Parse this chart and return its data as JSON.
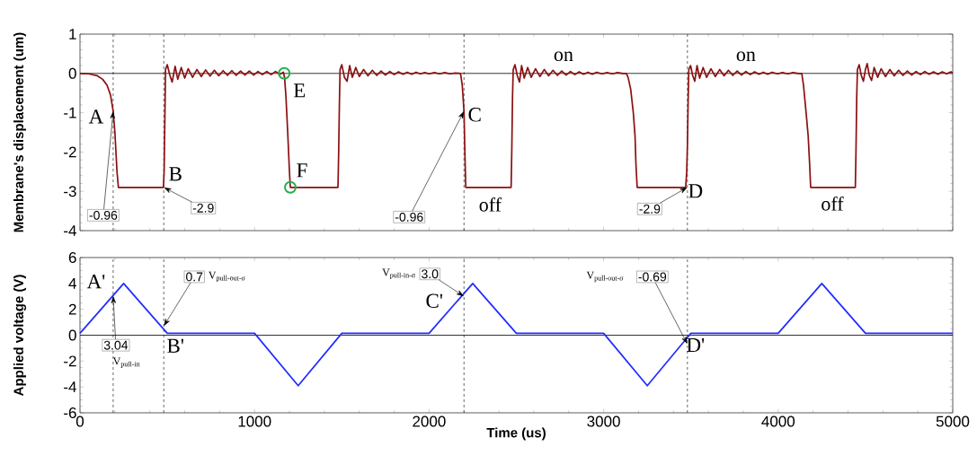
{
  "chart_data": [
    {
      "type": "line",
      "ylabel": "Membrane's displacement (um)",
      "xlim": [
        0,
        5000
      ],
      "ylim": [
        -4,
        1
      ],
      "xticks": [
        0,
        1000,
        2000,
        3000,
        4000,
        5000
      ],
      "yticks": [
        -4,
        -3,
        -2,
        -1,
        0,
        1
      ],
      "tick_labels": "y",
      "line_style": "solid",
      "series": [
        {
          "color": "#8b1010",
          "x": [
            0,
            50,
            100,
            130,
            155,
            175,
            190,
            200,
            212,
            220,
            478,
            482,
            486,
            490,
            500,
            515,
            528,
            545,
            560,
            580,
            600,
            620,
            645,
            670,
            695,
            720,
            745,
            770,
            795,
            820,
            845,
            870,
            895,
            920,
            945,
            970,
            995,
            1020,
            1045,
            1070,
            1095,
            1120,
            1145,
            1165,
            1172,
            1180,
            1190,
            1200,
            1205,
            1478,
            1482,
            1486,
            1490,
            1500,
            1515,
            1530,
            1545,
            1560,
            1580,
            1600,
            1625,
            1650,
            1675,
            1700,
            1725,
            1750,
            1775,
            1800,
            1825,
            1850,
            1875,
            1900,
            1925,
            1950,
            1975,
            2000,
            2030,
            2060,
            2090,
            2120,
            2150,
            2180,
            2190,
            2200,
            2205,
            2210,
            2470,
            2474,
            2478,
            2482,
            2492,
            2505,
            2518,
            2530,
            2545,
            2565,
            2585,
            2610,
            2635,
            2660,
            2685,
            2710,
            2735,
            2760,
            2785,
            2810,
            2835,
            2860,
            2885,
            2910,
            2935,
            2960,
            2990,
            3020,
            3050,
            3080,
            3110,
            3130,
            3140,
            3155,
            3170,
            3180,
            3185,
            3192,
            3470,
            3476,
            3480,
            3484,
            3488,
            3498,
            3510,
            3522,
            3535,
            3550,
            3570,
            3590,
            3615,
            3640,
            3665,
            3690,
            3715,
            3740,
            3765,
            3790,
            3815,
            3840,
            3865,
            3890,
            3915,
            3940,
            3965,
            3995,
            4025,
            4055,
            4085,
            4115,
            4135,
            4145,
            4160,
            4172,
            4180,
            4186,
            4442,
            4446,
            4450,
            4454,
            4464,
            4476,
            4488,
            4500,
            4510,
            4522,
            4535,
            4550,
            4570,
            4590,
            4615,
            4640,
            4665,
            4690,
            4715,
            4740,
            4765,
            4790,
            4815,
            4840,
            4865,
            4890,
            4915,
            4940,
            4965,
            4990,
            5000
          ],
          "values": [
            0,
            -0.01,
            -0.06,
            -0.15,
            -0.3,
            -0.55,
            -0.96,
            -1.5,
            -2.5,
            -2.9,
            -2.9,
            -2.5,
            -1.2,
            0.1,
            0.22,
            -0.05,
            -0.22,
            0.18,
            -0.15,
            0.15,
            -0.12,
            0.12,
            -0.1,
            0.1,
            -0.08,
            0.09,
            -0.07,
            0.08,
            -0.06,
            0.07,
            -0.05,
            0.07,
            -0.05,
            0.06,
            -0.04,
            0.06,
            -0.04,
            0.05,
            -0.03,
            0.05,
            -0.03,
            0.05,
            -0.02,
            0.03,
            -0.1,
            -0.6,
            -1.5,
            -2.5,
            -2.9,
            -2.9,
            -2.0,
            -0.8,
            0.1,
            0.22,
            -0.1,
            -0.2,
            0.2,
            -0.1,
            0.15,
            -0.08,
            0.1,
            -0.06,
            0.08,
            -0.05,
            0.06,
            -0.04,
            0.05,
            -0.03,
            0.04,
            -0.02,
            0.03,
            -0.02,
            0.03,
            -0.01,
            0.02,
            -0.01,
            0.02,
            -0.01,
            0.02,
            -0.01,
            0.01,
            0,
            -0.3,
            -0.96,
            -2.0,
            -2.9,
            -2.9,
            -1.9,
            -0.6,
            0.1,
            0.22,
            -0.05,
            -0.22,
            0.2,
            -0.12,
            0.15,
            -0.1,
            0.12,
            -0.08,
            0.1,
            -0.06,
            0.08,
            -0.05,
            0.06,
            -0.04,
            0.05,
            -0.03,
            0.04,
            -0.02,
            0.03,
            -0.02,
            0.03,
            -0.01,
            0.02,
            -0.01,
            0.02,
            0,
            0,
            -0.1,
            -0.4,
            -1.0,
            -1.6,
            -2.3,
            -2.9,
            -2.9,
            -2.5,
            -1.8,
            -0.7,
            0.1,
            0.2,
            -0.05,
            -0.2,
            0.2,
            -0.12,
            0.15,
            -0.1,
            0.12,
            -0.08,
            0.1,
            -0.06,
            0.08,
            -0.05,
            0.06,
            -0.04,
            0.05,
            -0.03,
            0.04,
            -0.02,
            0.03,
            -0.02,
            0.03,
            -0.01,
            0.02,
            -0.01,
            0.02,
            0,
            0,
            -0.3,
            -1.0,
            -1.6,
            -2.3,
            -2.9,
            -2.9,
            -1.9,
            -0.6,
            0.1,
            0.22,
            -0.05,
            -0.2,
            0.1,
            0.25,
            -0.05,
            -0.18,
            0.15,
            -0.1,
            0.12,
            -0.08,
            0.1,
            -0.06,
            0.08,
            -0.05,
            0.06,
            -0.04,
            0.05,
            -0.03,
            0.05,
            -0.02,
            0.04,
            -0.02,
            0.04,
            -0.01,
            0.04,
            0.02
          ]
        },
        {
          "type": "scatter",
          "color": "#22b14c",
          "marker": "circle",
          "x": [
            1170,
            1205
          ],
          "values": [
            0,
            -2.9
          ]
        }
      ],
      "ref_lines": [
        {
          "axis": "x",
          "value": 190,
          "line_style": "dashed",
          "color": "#000000"
        },
        {
          "axis": "x",
          "value": 480,
          "line_style": "dashed",
          "color": "#000000"
        },
        {
          "axis": "x",
          "value": 2200,
          "line_style": "dashed",
          "color": "#000000"
        },
        {
          "axis": "x",
          "value": 3480,
          "line_style": "dashed",
          "color": "#000000"
        },
        {
          "axis": "y",
          "value": 0,
          "line_style": "solid",
          "color": "#000000"
        }
      ],
      "annotations": [
        {
          "text": "A",
          "x": 190,
          "y": -0.96
        },
        {
          "text": "-0.96",
          "x": 190,
          "y": -0.96
        },
        {
          "text": "B",
          "x": 480,
          "y": -2.9
        },
        {
          "text": "-2.9",
          "x": 480,
          "y": -2.9
        },
        {
          "text": "E",
          "x": 1170,
          "y": 0
        },
        {
          "text": "F",
          "x": 1205,
          "y": -2.9
        },
        {
          "text": "C",
          "x": 2200,
          "y": -0.96
        },
        {
          "text": "-0.96",
          "x": 2200,
          "y": -0.96
        },
        {
          "text": "off",
          "x": 2350,
          "y": -2.9
        },
        {
          "text": "on",
          "x": 2770,
          "y": 0
        },
        {
          "text": "-2.9",
          "x": 3480,
          "y": -2.9
        },
        {
          "text": "D",
          "x": 3480,
          "y": -2.9
        },
        {
          "text": "on",
          "x": 3815,
          "y": 0
        },
        {
          "text": "off",
          "x": 4310,
          "y": -2.9
        }
      ]
    },
    {
      "type": "line",
      "xlabel": "Time (us)",
      "ylabel": "Applied voltage (V)",
      "xlim": [
        0,
        5000
      ],
      "ylim": [
        -6,
        6
      ],
      "xticks": [
        0,
        1000,
        2000,
        3000,
        4000,
        5000
      ],
      "yticks": [
        -6,
        -4,
        -2,
        0,
        2,
        4,
        6
      ],
      "line_style": "solid",
      "series": [
        {
          "color": "#1f2bff",
          "x": [
            0,
            250,
            500,
            1000,
            1250,
            1500,
            2000,
            2250,
            2500,
            3000,
            3250,
            3500,
            4000,
            4250,
            4500,
            5000
          ],
          "values": [
            0.15,
            4,
            0.15,
            0.15,
            -3.9,
            0.15,
            0.15,
            4,
            0.15,
            0.15,
            -3.9,
            0.15,
            0.15,
            4,
            0.15,
            0.15
          ]
        }
      ],
      "ref_lines": [
        {
          "axis": "x",
          "value": 190,
          "line_style": "dashed",
          "color": "#000000"
        },
        {
          "axis": "x",
          "value": 480,
          "line_style": "dashed",
          "color": "#000000"
        },
        {
          "axis": "x",
          "value": 2200,
          "line_style": "dashed",
          "color": "#000000"
        },
        {
          "axis": "x",
          "value": 3480,
          "line_style": "dashed",
          "color": "#000000"
        },
        {
          "axis": "y",
          "value": 0,
          "line_style": "solid",
          "color": "#000000"
        }
      ],
      "annotations": [
        {
          "text": "A'",
          "x": 190,
          "y": 3.04
        },
        {
          "text": "3.04",
          "x": 190,
          "y": 3.04
        },
        "V$_{pull-in}$",
        {
          "text": "B'",
          "x": 480,
          "y": 0.15
        },
        {
          "text": "0.7",
          "x": 480,
          "y": 0.7
        },
        "V$_{pull-out-σ}$",
        {
          "text": "3.0",
          "x": 2200,
          "y": 3.0
        },
        "V$_{pull-in-σ}$",
        {
          "text": "C'",
          "x": 2200,
          "y": 3.0
        },
        {
          "text": "-0.69",
          "x": 3480,
          "y": -0.69
        },
        "V$_{pull-out-σ}$",
        {
          "text": "D'",
          "x": 3480,
          "y": 0
        }
      ]
    }
  ]
}
